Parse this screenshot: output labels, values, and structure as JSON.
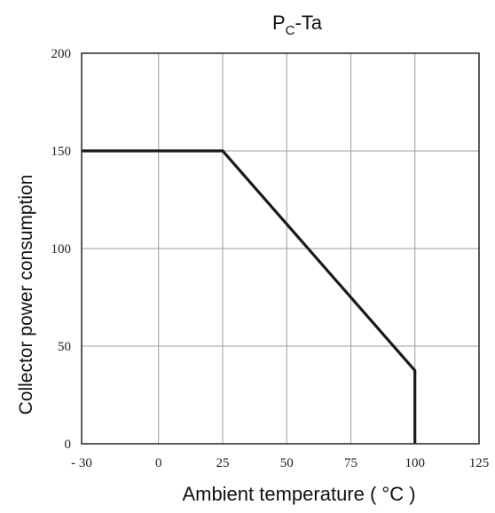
{
  "chart_data": {
    "type": "line",
    "title": "PC-Ta",
    "title_main": "P",
    "title_sub": "C",
    "title_rest": "-Ta",
    "xlabel": "Ambient temperature ( °C )",
    "ylabel": "Collector power consumption",
    "xlim": [
      -30,
      125
    ],
    "ylim": [
      0,
      200
    ],
    "x_ticks": [
      -30,
      0,
      25,
      50,
      75,
      100,
      125
    ],
    "x_tick_labels": [
      "- 30",
      "0",
      "25",
      "50",
      "75",
      "100",
      "125"
    ],
    "y_ticks": [
      0,
      50,
      100,
      150,
      200
    ],
    "y_tick_labels": [
      "0",
      "50",
      "100",
      "150",
      "200"
    ],
    "grid": true,
    "legend": "none",
    "series": [
      {
        "x": [
          -30,
          25,
          100,
          100
        ],
        "y": [
          150,
          150,
          37.5,
          0
        ]
      }
    ],
    "colors": {
      "line": "#1a1a1a",
      "grid": "#9a9a9a",
      "frame": "#333333"
    }
  }
}
